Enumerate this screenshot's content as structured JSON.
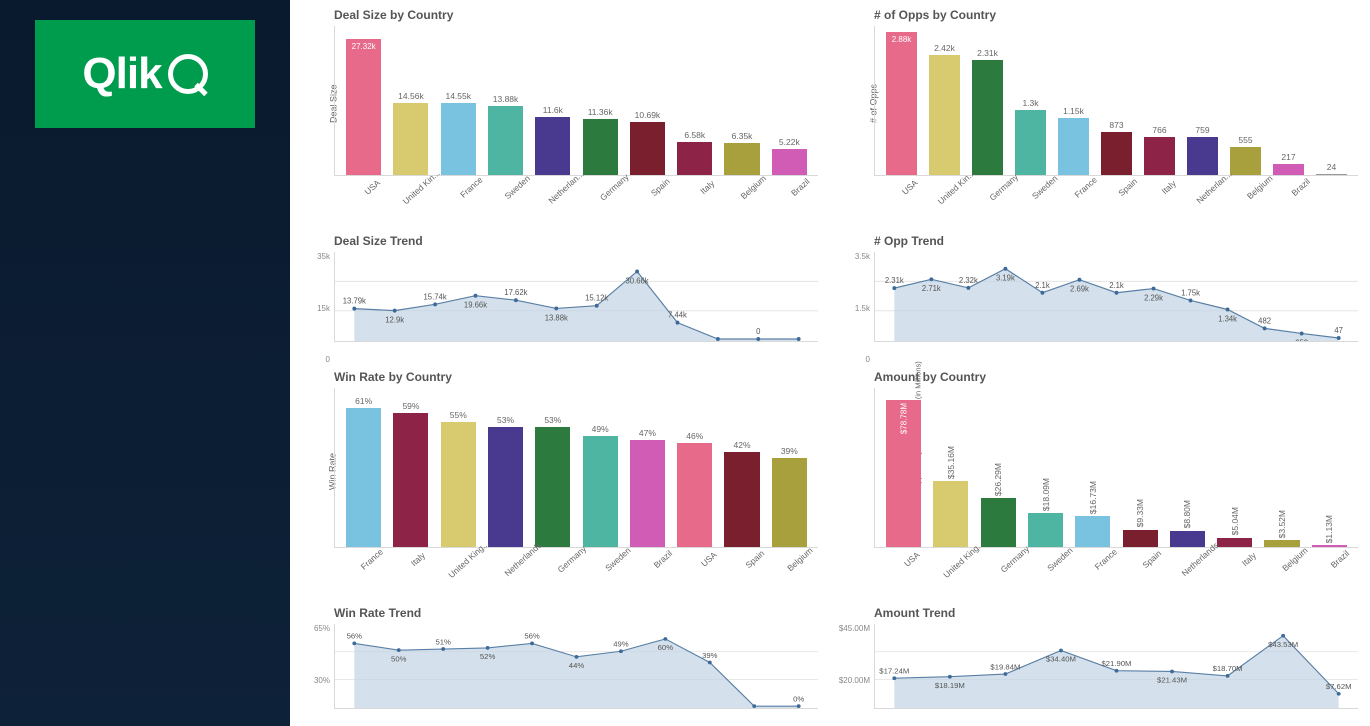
{
  "brand": {
    "name": "Qlik",
    "logo_bg": "#009c4d"
  },
  "palette": {
    "area_fill": "#c2d4e4",
    "area_stroke": "#5a7fa5",
    "point": "#3e6a99"
  },
  "charts": {
    "dealSizeCountry": {
      "title": "Deal Size by Country",
      "type": "bar",
      "yLabel": "Deal Size",
      "yMax": 30,
      "firstWhiteLabel": true,
      "bars": [
        {
          "label": "USA",
          "value": 27.32,
          "disp": "27.32k",
          "color": "#e86a8a"
        },
        {
          "label": "United Kin...",
          "value": 14.56,
          "disp": "14.56k",
          "color": "#d7ca6f"
        },
        {
          "label": "France",
          "value": 14.55,
          "disp": "14.55k",
          "color": "#79c3e0"
        },
        {
          "label": "Sweden",
          "value": 13.88,
          "disp": "13.88k",
          "color": "#4fb5a3"
        },
        {
          "label": "Netherlan...",
          "value": 11.6,
          "disp": "11.6k",
          "color": "#4a3a8f"
        },
        {
          "label": "Germany",
          "value": 11.36,
          "disp": "11.36k",
          "color": "#2c7a3e"
        },
        {
          "label": "Spain",
          "value": 10.69,
          "disp": "10.69k",
          "color": "#7a1f2e"
        },
        {
          "label": "Italy",
          "value": 6.58,
          "disp": "6.58k",
          "color": "#8d2447"
        },
        {
          "label": "Belgium",
          "value": 6.35,
          "disp": "6.35k",
          "color": "#a8a03c"
        },
        {
          "label": "Brazil",
          "value": 5.22,
          "disp": "5.22k",
          "color": "#d05cb5"
        }
      ]
    },
    "oppsCountry": {
      "title": "# of Opps by Country",
      "type": "bar",
      "yLabel": "# of Opps",
      "yMax": 3000,
      "firstWhiteLabel": true,
      "bars": [
        {
          "label": "USA",
          "value": 2880,
          "disp": "2.88k",
          "color": "#e86a8a"
        },
        {
          "label": "United Kin...",
          "value": 2420,
          "disp": "2.42k",
          "color": "#d7ca6f"
        },
        {
          "label": "Germany",
          "value": 2310,
          "disp": "2.31k",
          "color": "#2c7a3e"
        },
        {
          "label": "Sweden",
          "value": 1300,
          "disp": "1.3k",
          "color": "#4fb5a3"
        },
        {
          "label": "France",
          "value": 1150,
          "disp": "1.15k",
          "color": "#79c3e0"
        },
        {
          "label": "Spain",
          "value": 873,
          "disp": "873",
          "color": "#7a1f2e"
        },
        {
          "label": "Italy",
          "value": 766,
          "disp": "766",
          "color": "#8d2447"
        },
        {
          "label": "Netherlan...",
          "value": 759,
          "disp": "759",
          "color": "#4a3a8f"
        },
        {
          "label": "Belgium",
          "value": 555,
          "disp": "555",
          "color": "#a8a03c"
        },
        {
          "label": "Brazil",
          "value": 217,
          "disp": "217",
          "color": "#d05cb5"
        },
        {
          "label": "",
          "value": 24,
          "disp": "24",
          "color": "#999999"
        }
      ]
    },
    "dealSizeTrend": {
      "title": "Deal Size Trend",
      "type": "area",
      "yTicks": [
        "35k",
        "15k",
        "0"
      ],
      "yMax": 35,
      "points": [
        {
          "v": 13.79,
          "disp": "13.79k"
        },
        {
          "v": 12.9,
          "disp": "12.9k"
        },
        {
          "v": 15.74,
          "disp": "15.74k"
        },
        {
          "v": 19.66,
          "disp": "19.66k"
        },
        {
          "v": 17.62,
          "disp": "17.62k"
        },
        {
          "v": 13.88,
          "disp": "13.88k"
        },
        {
          "v": 15.12,
          "disp": "15.12k"
        },
        {
          "v": 30.66,
          "disp": "30.66k"
        },
        {
          "v": 7.44,
          "disp": "7.44k"
        },
        {
          "v": 0,
          "disp": "0"
        },
        {
          "v": 0,
          "disp": "0"
        },
        {
          "v": 0,
          "disp": "0"
        }
      ]
    },
    "oppTrend": {
      "title": "# Opp Trend",
      "type": "area",
      "yTicks": [
        "3.5k",
        "1.5k",
        "0"
      ],
      "yMax": 3.5,
      "points": [
        {
          "v": 2.31,
          "disp": "2.31k"
        },
        {
          "v": 2.71,
          "disp": "2.71k"
        },
        {
          "v": 2.32,
          "disp": "2.32k"
        },
        {
          "v": 3.19,
          "disp": "3.19k"
        },
        {
          "v": 2.1,
          "disp": "2.1k"
        },
        {
          "v": 2.69,
          "disp": "2.69k"
        },
        {
          "v": 2.1,
          "disp": "2.1k"
        },
        {
          "v": 2.29,
          "disp": "2.29k"
        },
        {
          "v": 1.75,
          "disp": "1.75k"
        },
        {
          "v": 1.34,
          "disp": "1.34k"
        },
        {
          "v": 0.482,
          "disp": "482"
        },
        {
          "v": 0.252,
          "disp": "252"
        },
        {
          "v": 0.047,
          "disp": "47"
        }
      ]
    },
    "winRateCountry": {
      "title": "Win Rate by Country",
      "type": "bar",
      "yLabel": "Win Rate",
      "yMax": 70,
      "firstWhiteLabel": false,
      "bars": [
        {
          "label": "France",
          "value": 61,
          "disp": "61%",
          "color": "#79c3e0"
        },
        {
          "label": "Italy",
          "value": 59,
          "disp": "59%",
          "color": "#8d2447"
        },
        {
          "label": "United King...",
          "value": 55,
          "disp": "55%",
          "color": "#d7ca6f"
        },
        {
          "label": "Netherlands",
          "value": 53,
          "disp": "53%",
          "color": "#4a3a8f"
        },
        {
          "label": "Germany",
          "value": 53,
          "disp": "53%",
          "color": "#2c7a3e"
        },
        {
          "label": "Sweden",
          "value": 49,
          "disp": "49%",
          "color": "#4fb5a3"
        },
        {
          "label": "Brazil",
          "value": 47,
          "disp": "47%",
          "color": "#d05cb5"
        },
        {
          "label": "USA",
          "value": 46,
          "disp": "46%",
          "color": "#e86a8a"
        },
        {
          "label": "Spain",
          "value": 42,
          "disp": "42%",
          "color": "#7a1f2e"
        },
        {
          "label": "Belgium",
          "value": 39,
          "disp": "39%",
          "color": "#a8a03c"
        }
      ]
    },
    "amountCountry": {
      "title": "Amount by Country",
      "type": "bar",
      "yLabel": "Opportunity Amount - Won (in Millions)",
      "yMax": 85,
      "verticalLabels": true,
      "firstWhiteLabel": true,
      "bars": [
        {
          "label": "USA",
          "value": 78.78,
          "disp": "$78.78M",
          "color": "#e86a8a"
        },
        {
          "label": "United King...",
          "value": 35.16,
          "disp": "$35.16M",
          "color": "#d7ca6f"
        },
        {
          "label": "Germany",
          "value": 26.29,
          "disp": "$26.29M",
          "color": "#2c7a3e"
        },
        {
          "label": "Sweden",
          "value": 18.09,
          "disp": "$18.09M",
          "color": "#4fb5a3"
        },
        {
          "label": "France",
          "value": 16.73,
          "disp": "$16.73M",
          "color": "#79c3e0"
        },
        {
          "label": "Spain",
          "value": 9.33,
          "disp": "$9.33M",
          "color": "#7a1f2e"
        },
        {
          "label": "Netherlands",
          "value": 8.8,
          "disp": "$8.80M",
          "color": "#4a3a8f"
        },
        {
          "label": "Italy",
          "value": 5.04,
          "disp": "$5.04M",
          "color": "#8d2447"
        },
        {
          "label": "Belgium",
          "value": 3.52,
          "disp": "$3.52M",
          "color": "#a8a03c"
        },
        {
          "label": "Brazil",
          "value": 1.13,
          "disp": "$1.13M",
          "color": "#d05cb5"
        }
      ]
    },
    "winRateTrend": {
      "title": "Win Rate Trend",
      "type": "area",
      "yTicks": [
        "65%",
        "30%",
        "0%"
      ],
      "yMax": 65,
      "points": [
        {
          "v": 56,
          "disp": "56%"
        },
        {
          "v": 50,
          "disp": "50%"
        },
        {
          "v": 51,
          "disp": "51%"
        },
        {
          "v": 52,
          "disp": "52%"
        },
        {
          "v": 56,
          "disp": "56%"
        },
        {
          "v": 44,
          "disp": "44%"
        },
        {
          "v": 49,
          "disp": "49%"
        },
        {
          "v": 60,
          "disp": "60%"
        },
        {
          "v": 39,
          "disp": "39%"
        },
        {
          "v": 0,
          "disp": "0%"
        },
        {
          "v": 0,
          "disp": "0%"
        }
      ]
    },
    "amountTrend": {
      "title": "Amount Trend",
      "type": "area",
      "yTicks": [
        "$45.00M",
        "$20.00M",
        "$0.00"
      ],
      "yMax": 45,
      "points": [
        {
          "v": 17.24,
          "disp": "$17.24M"
        },
        {
          "v": 18.19,
          "disp": "$18.19M"
        },
        {
          "v": 19.84,
          "disp": "$19.84M"
        },
        {
          "v": 34.4,
          "disp": "$34.40M"
        },
        {
          "v": 21.9,
          "disp": "$21.90M"
        },
        {
          "v": 21.43,
          "disp": "$21.43M"
        },
        {
          "v": 18.7,
          "disp": "$18.70M"
        },
        {
          "v": 43.53,
          "disp": "$43.53M"
        },
        {
          "v": 7.62,
          "disp": "$7.62M"
        }
      ]
    }
  }
}
